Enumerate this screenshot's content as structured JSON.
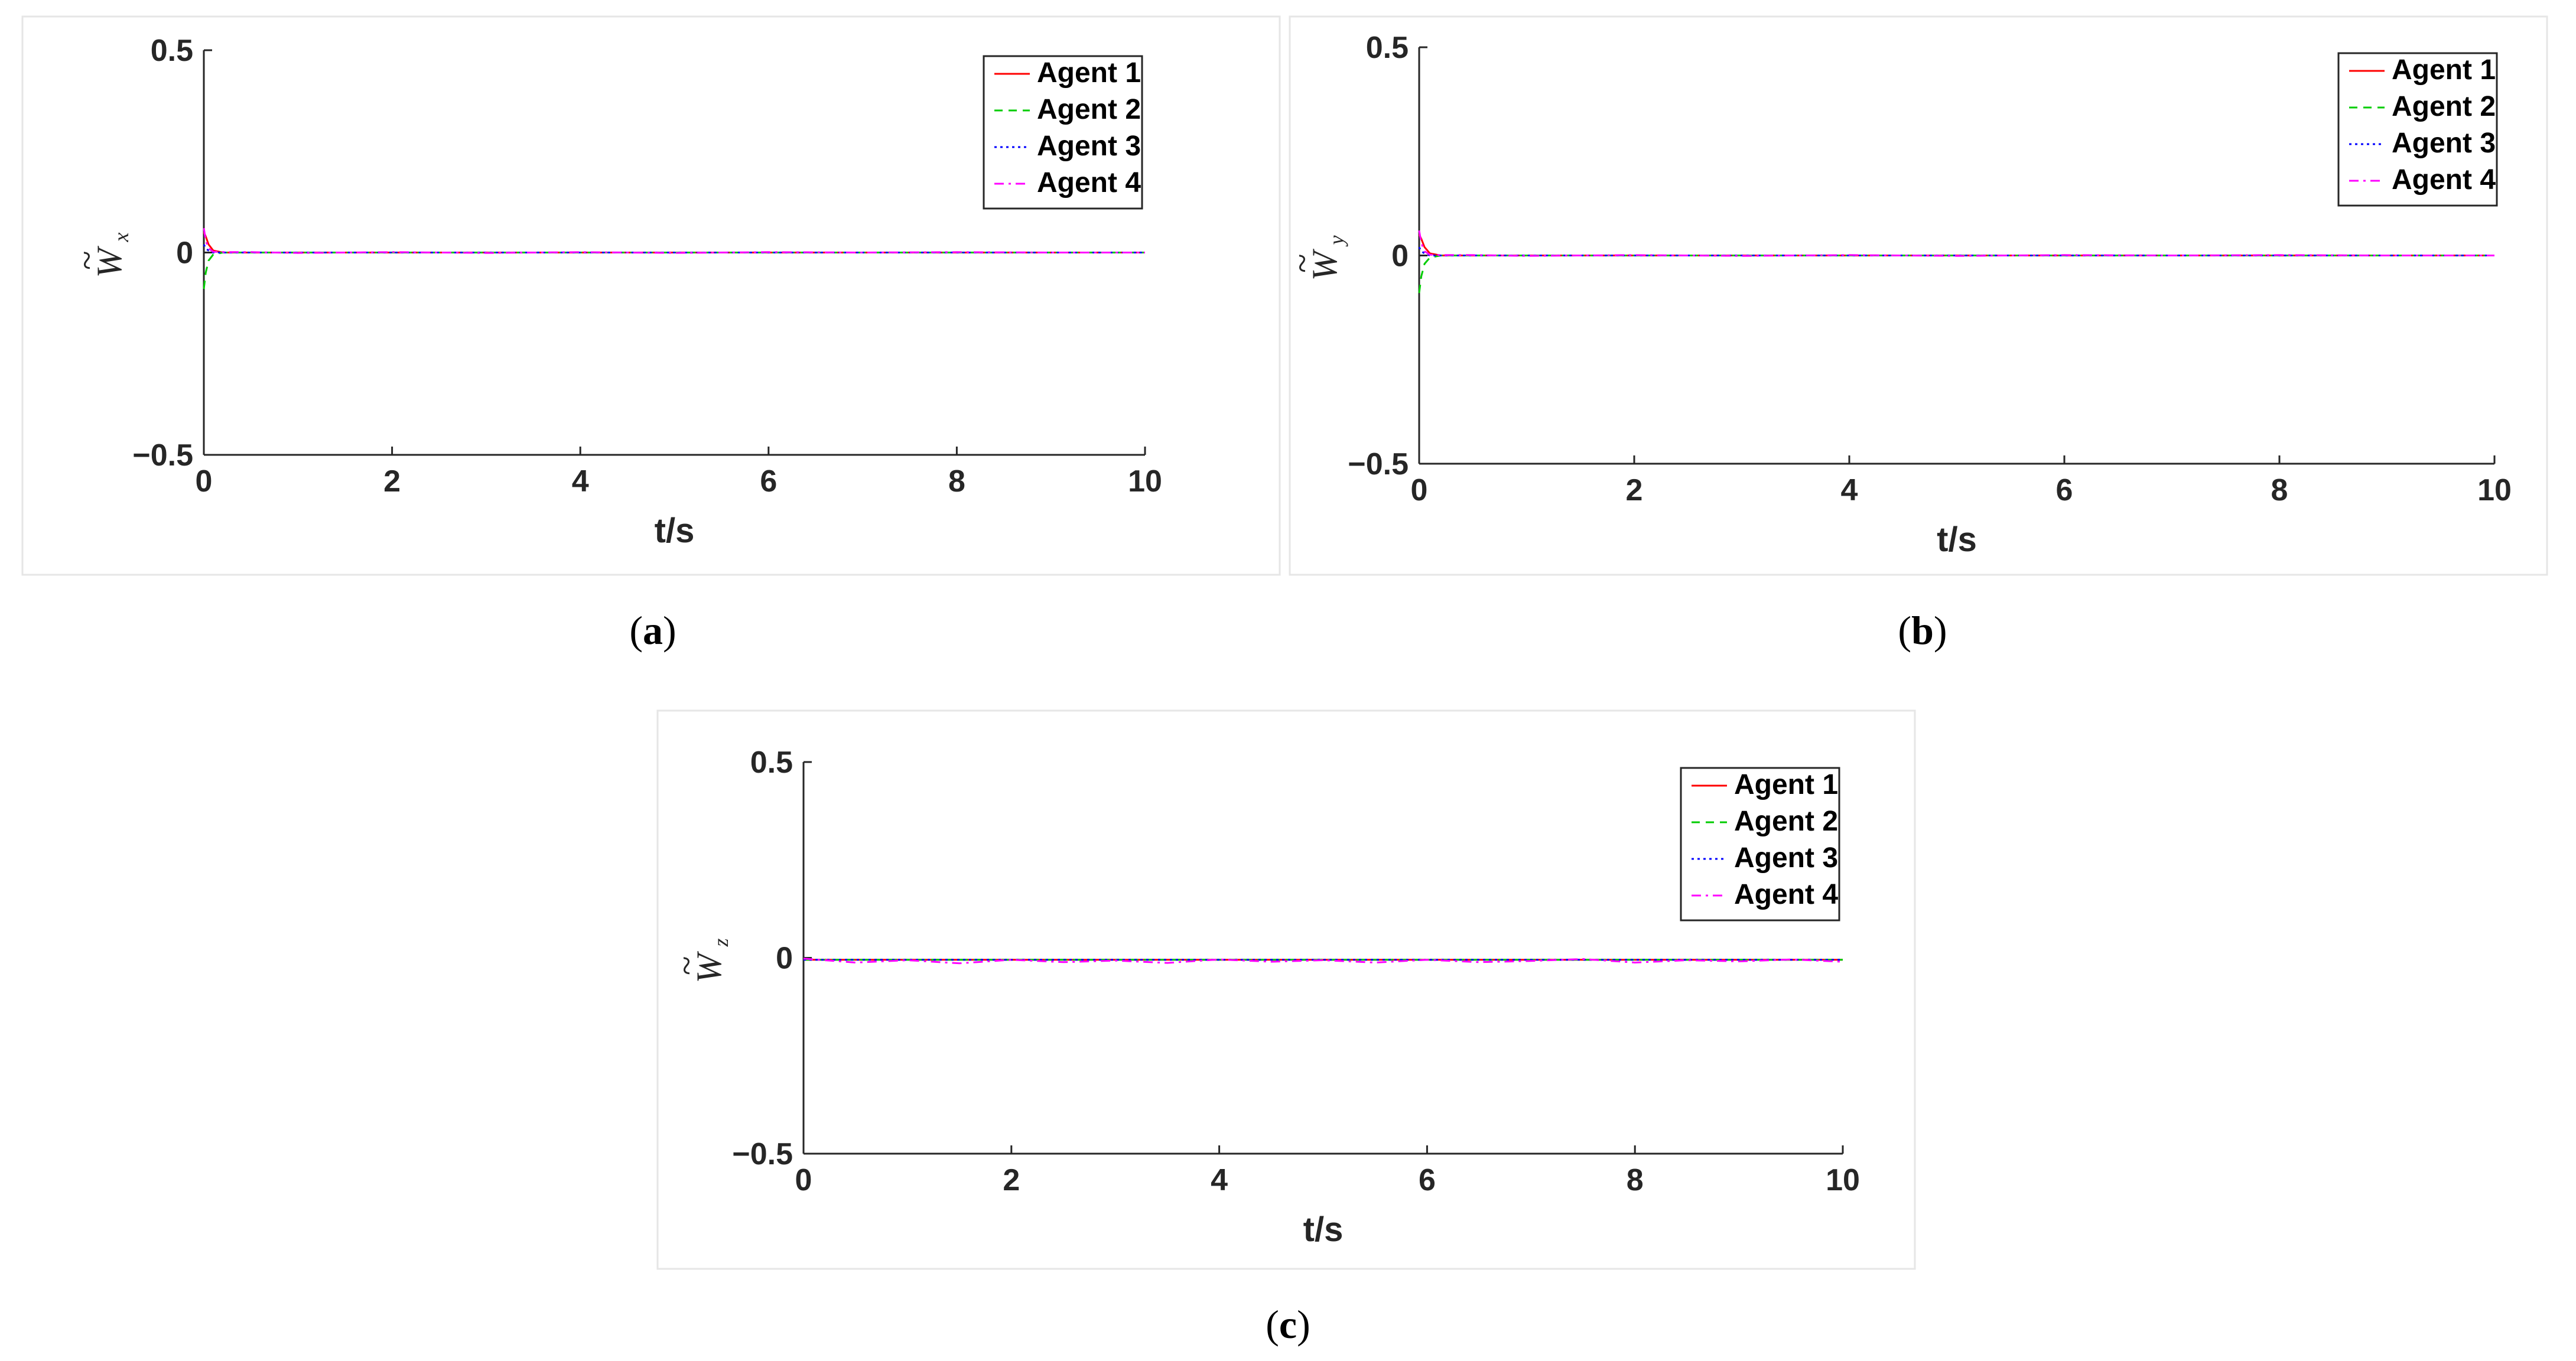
{
  "chart_data": [
    {
      "type": "line",
      "panel": "a",
      "caption": "a",
      "xlabel": "t/s",
      "ylabel": {
        "base": "W",
        "accent": "~",
        "subscript": "x"
      },
      "xlim": [
        0,
        10
      ],
      "ylim": [
        -0.5,
        0.5
      ],
      "xticks": [
        "0",
        "2",
        "4",
        "6",
        "8",
        "10"
      ],
      "yticks": [
        "0.5",
        "0",
        "−0.5"
      ],
      "grid": false,
      "legend_position": "top-right",
      "series": [
        {
          "name": "Agent 1",
          "color": "#ff0000",
          "dash": "solid",
          "x": [
            0,
            0.02,
            0.05,
            0.1,
            0.2,
            0.5,
            1,
            2,
            3,
            4,
            5,
            6,
            7,
            8,
            9,
            10
          ],
          "y": [
            0.05,
            0.04,
            0.02,
            0.005,
            0,
            0,
            0,
            0,
            0,
            0,
            0,
            0,
            0,
            0,
            0,
            0
          ]
        },
        {
          "name": "Agent 2",
          "color": "#00cc00",
          "dash": "dashed",
          "x": [
            0,
            0.02,
            0.05,
            0.1,
            0.2,
            0.5,
            1,
            2,
            3,
            4,
            5,
            6,
            7,
            8,
            9,
            10
          ],
          "y": [
            -0.09,
            -0.05,
            -0.02,
            -0.005,
            0,
            0,
            0,
            0,
            0,
            0,
            0,
            0,
            0,
            0,
            0,
            0
          ]
        },
        {
          "name": "Agent 3",
          "color": "#0000ff",
          "dash": "dotted",
          "x": [
            0,
            0.02,
            0.05,
            0.1,
            0.2,
            0.5,
            1,
            2,
            3,
            4,
            5,
            6,
            7,
            8,
            9,
            10
          ],
          "y": [
            0.02,
            0.01,
            0.005,
            0,
            0,
            0,
            0,
            0,
            0,
            0,
            0,
            0,
            0,
            0,
            0,
            0
          ]
        },
        {
          "name": "Agent 4",
          "color": "#ff00ff",
          "dash": "dashdot",
          "x": [
            0,
            0.02,
            0.05,
            0.1,
            0.2,
            0.5,
            1,
            2,
            3,
            4,
            5,
            6,
            7,
            8,
            9,
            10
          ],
          "y": [
            0.06,
            0.03,
            0.01,
            0.002,
            0.001,
            0.001,
            -0.001,
            0.001,
            -0.001,
            0.001,
            -0.001,
            0.001,
            0,
            0.001,
            0,
            0
          ]
        }
      ]
    },
    {
      "type": "line",
      "panel": "b",
      "caption": "b",
      "xlabel": "t/s",
      "ylabel": {
        "base": "W",
        "accent": "~",
        "subscript": "y"
      },
      "xlim": [
        0,
        10
      ],
      "ylim": [
        -0.5,
        0.5
      ],
      "xticks": [
        "0",
        "2",
        "4",
        "6",
        "8",
        "10"
      ],
      "yticks": [
        "0.5",
        "0",
        "−0.5"
      ],
      "grid": false,
      "legend_position": "top-right",
      "series": [
        {
          "name": "Agent 1",
          "color": "#ff0000",
          "dash": "solid",
          "x": [
            0,
            0.02,
            0.05,
            0.1,
            0.2,
            0.5,
            1,
            2,
            3,
            4,
            5,
            6,
            7,
            8,
            9,
            10
          ],
          "y": [
            0.05,
            0.04,
            0.02,
            0.005,
            0,
            0,
            0,
            0,
            0,
            0,
            0,
            0,
            0,
            0,
            0,
            0
          ]
        },
        {
          "name": "Agent 2",
          "color": "#00cc00",
          "dash": "dashed",
          "x": [
            0,
            0.02,
            0.05,
            0.1,
            0.2,
            0.5,
            1,
            2,
            3,
            4,
            5,
            6,
            7,
            8,
            9,
            10
          ],
          "y": [
            -0.09,
            -0.05,
            -0.02,
            -0.005,
            0,
            0,
            0,
            0,
            0,
            0,
            0,
            0,
            0,
            0,
            0,
            0
          ]
        },
        {
          "name": "Agent 3",
          "color": "#0000ff",
          "dash": "dotted",
          "x": [
            0,
            0.02,
            0.05,
            0.1,
            0.2,
            0.5,
            1,
            2,
            3,
            4,
            5,
            6,
            7,
            8,
            9,
            10
          ],
          "y": [
            0.02,
            0.01,
            0.005,
            0,
            0,
            0,
            0,
            0,
            0,
            0,
            0,
            0,
            0,
            0,
            0,
            0
          ]
        },
        {
          "name": "Agent 4",
          "color": "#ff00ff",
          "dash": "dashdot",
          "x": [
            0,
            0.02,
            0.05,
            0.1,
            0.2,
            0.5,
            1,
            2,
            3,
            4,
            5,
            6,
            7,
            8,
            9,
            10
          ],
          "y": [
            0.06,
            0.03,
            0.01,
            0.002,
            0.001,
            0.001,
            -0.001,
            0.001,
            -0.001,
            0.001,
            -0.001,
            0.001,
            0,
            0.001,
            0,
            0
          ]
        }
      ]
    },
    {
      "type": "line",
      "panel": "c",
      "caption": "c",
      "xlabel": "t/s",
      "ylabel": {
        "base": "W",
        "accent": "~",
        "subscript": "z"
      },
      "xlim": [
        0,
        10
      ],
      "ylim": [
        -0.5,
        0.5
      ],
      "xticks": [
        "0",
        "2",
        "4",
        "6",
        "8",
        "10"
      ],
      "yticks": [
        "0.5",
        "0",
        "−0.5"
      ],
      "grid": false,
      "legend_position": "top-right",
      "series": [
        {
          "name": "Agent 1",
          "color": "#ff0000",
          "dash": "solid",
          "x": [
            0,
            1,
            2,
            3,
            4,
            5,
            6,
            7,
            8,
            9,
            10
          ],
          "y": [
            -0.005,
            -0.005,
            -0.005,
            -0.005,
            -0.005,
            -0.005,
            -0.005,
            -0.005,
            -0.005,
            -0.005,
            -0.005
          ]
        },
        {
          "name": "Agent 2",
          "color": "#00cc00",
          "dash": "dashed",
          "x": [
            0,
            1,
            2,
            3,
            4,
            5,
            6,
            7,
            8,
            9,
            10
          ],
          "y": [
            -0.005,
            -0.005,
            -0.005,
            -0.005,
            -0.005,
            -0.005,
            -0.005,
            -0.005,
            -0.005,
            -0.005,
            -0.005
          ]
        },
        {
          "name": "Agent 3",
          "color": "#0000ff",
          "dash": "dotted",
          "x": [
            0,
            1,
            2,
            3,
            4,
            5,
            6,
            7,
            8,
            9,
            10
          ],
          "y": [
            -0.005,
            -0.005,
            -0.005,
            -0.005,
            -0.005,
            -0.005,
            -0.005,
            -0.005,
            -0.005,
            -0.005,
            -0.005
          ]
        },
        {
          "name": "Agent 4",
          "color": "#ff00ff",
          "dash": "dashdot",
          "x": [
            0,
            0.5,
            1,
            1.5,
            2,
            2.5,
            3,
            3.5,
            4,
            4.5,
            5,
            5.5,
            6,
            6.5,
            7,
            7.5,
            8,
            8.5,
            9,
            9.5,
            10
          ],
          "y": [
            -0.002,
            -0.012,
            -0.006,
            -0.014,
            -0.005,
            -0.011,
            -0.007,
            -0.013,
            -0.004,
            -0.01,
            -0.006,
            -0.012,
            -0.005,
            -0.011,
            -0.008,
            -0.003,
            -0.012,
            -0.006,
            -0.009,
            -0.004,
            -0.01
          ]
        }
      ]
    }
  ]
}
